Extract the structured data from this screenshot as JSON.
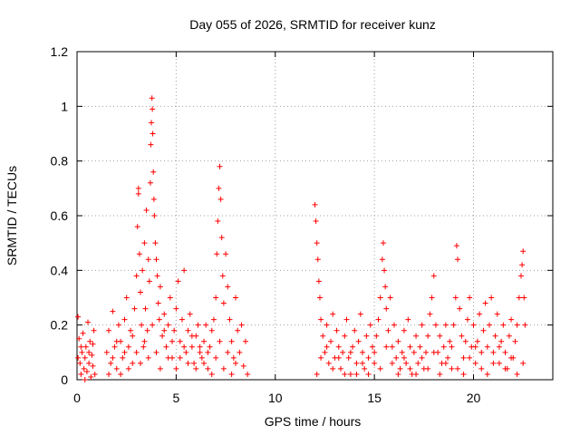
{
  "chart_data": {
    "type": "scatter",
    "title": "Day 055 of 2026, SRMTID for receiver kunz",
    "xlabel": "GPS time / hours",
    "ylabel": "SRMTID / TECUs",
    "xlim": [
      0,
      24
    ],
    "ylim": [
      0,
      1.2
    ],
    "x_ticks": [
      0,
      5,
      10,
      15,
      20
    ],
    "x_tick_labels": [
      "0",
      "5",
      "10",
      "15",
      "20"
    ],
    "y_ticks": [
      0,
      0.2,
      0.4,
      0.6,
      0.8,
      1.0,
      1.2
    ],
    "y_tick_labels": [
      "0",
      "0.2",
      "0.4",
      "0.6",
      "0.8",
      "1",
      "1.2"
    ],
    "grid": true,
    "marker": "+",
    "series": [
      {
        "name": "SRMTID",
        "color": "#ff0000",
        "points": [
          [
            0.05,
            0.23
          ],
          [
            0.1,
            0.15
          ],
          [
            0.15,
            0.06
          ],
          [
            0.2,
            0.02
          ],
          [
            0.25,
            0.1
          ],
          [
            0.3,
            0.17
          ],
          [
            0.35,
            0.04
          ],
          [
            0.4,
            0.08
          ],
          [
            0.45,
            0.12
          ],
          [
            0.5,
            0.03
          ],
          [
            0.55,
            0.21
          ],
          [
            0.6,
            0.06
          ],
          [
            0.65,
            0.14
          ],
          [
            0.7,
            0.01
          ],
          [
            0.75,
            0.09
          ],
          [
            0.8,
            0.05
          ],
          [
            0.85,
            0.18
          ],
          [
            0.9,
            0.02
          ],
          [
            0.05,
            0.08
          ],
          [
            0.2,
            0.12
          ],
          [
            0.4,
            0.0
          ],
          [
            0.6,
            0.1
          ],
          [
            0.8,
            0.13
          ],
          [
            1.5,
            0.1
          ],
          [
            1.6,
            0.18
          ],
          [
            1.7,
            0.06
          ],
          [
            1.8,
            0.25
          ],
          [
            1.9,
            0.12
          ],
          [
            2.0,
            0.04
          ],
          [
            2.1,
            0.2
          ],
          [
            2.2,
            0.14
          ],
          [
            2.3,
            0.08
          ],
          [
            2.4,
            0.22
          ],
          [
            2.5,
            0.3
          ],
          [
            2.6,
            0.12
          ],
          [
            2.7,
            0.18
          ],
          [
            2.8,
            0.06
          ],
          [
            2.9,
            0.26
          ],
          [
            3.0,
            0.38
          ],
          [
            3.05,
            0.56
          ],
          [
            3.1,
            0.7
          ],
          [
            3.1,
            0.68
          ],
          [
            3.15,
            0.46
          ],
          [
            3.2,
            0.32
          ],
          [
            3.25,
            0.2
          ],
          [
            3.3,
            0.4
          ],
          [
            3.35,
            0.12
          ],
          [
            3.4,
            0.5
          ],
          [
            3.45,
            0.26
          ],
          [
            3.5,
            0.62
          ],
          [
            3.55,
            0.18
          ],
          [
            3.6,
            0.44
          ],
          [
            3.65,
            0.36
          ],
          [
            3.7,
            0.72
          ],
          [
            3.72,
            0.86
          ],
          [
            3.75,
            0.94
          ],
          [
            3.78,
            1.03
          ],
          [
            3.8,
            0.99
          ],
          [
            3.82,
            0.9
          ],
          [
            3.85,
            0.76
          ],
          [
            3.88,
            0.66
          ],
          [
            3.9,
            0.6
          ],
          [
            3.95,
            0.5
          ],
          [
            4.0,
            0.44
          ],
          [
            4.05,
            0.38
          ],
          [
            4.1,
            0.28
          ],
          [
            4.15,
            0.22
          ],
          [
            4.2,
            0.34
          ],
          [
            4.3,
            0.16
          ],
          [
            4.4,
            0.24
          ],
          [
            4.5,
            0.12
          ],
          [
            4.6,
            0.2
          ],
          [
            4.7,
            0.3
          ],
          [
            4.8,
            0.08
          ],
          [
            4.9,
            0.18
          ],
          [
            5.0,
            0.26
          ],
          [
            5.1,
            0.36
          ],
          [
            5.2,
            0.14
          ],
          [
            5.3,
            0.22
          ],
          [
            5.4,
            0.4
          ],
          [
            5.5,
            0.1
          ],
          [
            5.6,
            0.18
          ],
          [
            5.7,
            0.24
          ],
          [
            5.8,
            0.12
          ],
          [
            5.9,
            0.06
          ],
          [
            6.0,
            0.16
          ],
          [
            6.1,
            0.2
          ],
          [
            6.2,
            0.1
          ],
          [
            6.3,
            0.08
          ],
          [
            6.4,
            0.14
          ],
          [
            6.5,
            0.2
          ],
          [
            6.6,
            0.04
          ],
          [
            6.7,
            0.12
          ],
          [
            6.8,
            0.18
          ],
          [
            6.9,
            0.22
          ],
          [
            7.0,
            0.3
          ],
          [
            7.05,
            0.46
          ],
          [
            7.1,
            0.58
          ],
          [
            7.15,
            0.7
          ],
          [
            7.2,
            0.78
          ],
          [
            7.25,
            0.66
          ],
          [
            7.3,
            0.52
          ],
          [
            7.35,
            0.38
          ],
          [
            7.4,
            0.28
          ],
          [
            7.5,
            0.46
          ],
          [
            7.6,
            0.34
          ],
          [
            7.7,
            0.22
          ],
          [
            7.8,
            0.14
          ],
          [
            7.9,
            0.08
          ],
          [
            8.0,
            0.3
          ],
          [
            8.1,
            0.18
          ],
          [
            8.2,
            0.1
          ],
          [
            8.3,
            0.2
          ],
          [
            8.4,
            0.05
          ],
          [
            8.5,
            0.14
          ],
          [
            8.6,
            0.02
          ],
          [
            1.6,
            0.02
          ],
          [
            1.8,
            0.08
          ],
          [
            2.0,
            0.14
          ],
          [
            2.2,
            0.02
          ],
          [
            2.4,
            0.1
          ],
          [
            2.6,
            0.04
          ],
          [
            2.8,
            0.16
          ],
          [
            3.0,
            0.1
          ],
          [
            3.2,
            0.06
          ],
          [
            3.4,
            0.14
          ],
          [
            3.6,
            0.08
          ],
          [
            3.8,
            0.2
          ],
          [
            4.0,
            0.1
          ],
          [
            4.2,
            0.04
          ],
          [
            4.4,
            0.18
          ],
          [
            4.6,
            0.08
          ],
          [
            4.8,
            0.14
          ],
          [
            5.0,
            0.04
          ],
          [
            5.2,
            0.08
          ],
          [
            5.4,
            0.12
          ],
          [
            5.6,
            0.06
          ],
          [
            5.8,
            0.16
          ],
          [
            6.0,
            0.04
          ],
          [
            6.2,
            0.12
          ],
          [
            6.4,
            0.06
          ],
          [
            6.6,
            0.1
          ],
          [
            6.8,
            0.02
          ],
          [
            7.0,
            0.08
          ],
          [
            7.2,
            0.14
          ],
          [
            7.4,
            0.04
          ],
          [
            7.6,
            0.1
          ],
          [
            7.8,
            0.02
          ],
          [
            8.0,
            0.06
          ],
          [
            12.0,
            0.64
          ],
          [
            12.05,
            0.58
          ],
          [
            12.1,
            0.5
          ],
          [
            12.15,
            0.44
          ],
          [
            12.2,
            0.36
          ],
          [
            12.25,
            0.3
          ],
          [
            12.3,
            0.22
          ],
          [
            12.4,
            0.16
          ],
          [
            12.5,
            0.1
          ],
          [
            12.6,
            0.2
          ],
          [
            12.7,
            0.06
          ],
          [
            12.8,
            0.14
          ],
          [
            12.9,
            0.24
          ],
          [
            13.0,
            0.08
          ],
          [
            13.1,
            0.18
          ],
          [
            13.2,
            0.12
          ],
          [
            13.3,
            0.04
          ],
          [
            13.4,
            0.1
          ],
          [
            13.5,
            0.16
          ],
          [
            13.6,
            0.22
          ],
          [
            13.7,
            0.08
          ],
          [
            13.8,
            0.02
          ],
          [
            13.9,
            0.12
          ],
          [
            14.0,
            0.18
          ],
          [
            14.1,
            0.06
          ],
          [
            14.2,
            0.14
          ],
          [
            14.3,
            0.24
          ],
          [
            14.4,
            0.1
          ],
          [
            14.5,
            0.04
          ],
          [
            14.6,
            0.16
          ],
          [
            14.7,
            0.08
          ],
          [
            14.8,
            0.2
          ],
          [
            14.9,
            0.12
          ],
          [
            15.0,
            0.06
          ],
          [
            15.1,
            0.16
          ],
          [
            15.2,
            0.22
          ],
          [
            15.3,
            0.3
          ],
          [
            15.4,
            0.44
          ],
          [
            15.45,
            0.5
          ],
          [
            15.5,
            0.4
          ],
          [
            15.55,
            0.34
          ],
          [
            15.6,
            0.26
          ],
          [
            15.7,
            0.18
          ],
          [
            15.8,
            0.3
          ],
          [
            15.9,
            0.12
          ],
          [
            16.0,
            0.2
          ],
          [
            16.1,
            0.08
          ],
          [
            16.2,
            0.14
          ],
          [
            16.3,
            0.04
          ],
          [
            16.4,
            0.1
          ],
          [
            16.5,
            0.18
          ],
          [
            16.6,
            0.06
          ],
          [
            16.7,
            0.22
          ],
          [
            16.8,
            0.12
          ],
          [
            16.9,
            0.02
          ],
          [
            17.0,
            0.1
          ],
          [
            17.1,
            0.16
          ],
          [
            17.2,
            0.06
          ],
          [
            17.3,
            0.12
          ],
          [
            17.4,
            0.2
          ],
          [
            17.5,
            0.04
          ],
          [
            17.6,
            0.1
          ],
          [
            17.7,
            0.16
          ],
          [
            17.8,
            0.24
          ],
          [
            17.9,
            0.3
          ],
          [
            18.0,
            0.38
          ],
          [
            18.1,
            0.2
          ],
          [
            18.2,
            0.1
          ],
          [
            18.3,
            0.16
          ],
          [
            18.4,
            0.06
          ],
          [
            18.5,
            0.12
          ],
          [
            18.6,
            0.2
          ],
          [
            18.7,
            0.08
          ],
          [
            18.8,
            0.14
          ],
          [
            18.9,
            0.04
          ],
          [
            19.0,
            0.2
          ],
          [
            19.1,
            0.3
          ],
          [
            19.15,
            0.49
          ],
          [
            19.2,
            0.44
          ],
          [
            19.3,
            0.26
          ],
          [
            19.4,
            0.16
          ],
          [
            19.5,
            0.08
          ],
          [
            19.6,
            0.14
          ],
          [
            19.7,
            0.22
          ],
          [
            19.8,
            0.3
          ],
          [
            19.9,
            0.12
          ],
          [
            20.0,
            0.2
          ],
          [
            20.1,
            0.06
          ],
          [
            20.2,
            0.14
          ],
          [
            20.3,
            0.24
          ],
          [
            20.4,
            0.1
          ],
          [
            20.5,
            0.18
          ],
          [
            20.6,
            0.28
          ],
          [
            20.7,
            0.12
          ],
          [
            20.8,
            0.2
          ],
          [
            20.9,
            0.3
          ],
          [
            21.0,
            0.1
          ],
          [
            21.1,
            0.16
          ],
          [
            21.2,
            0.24
          ],
          [
            21.3,
            0.06
          ],
          [
            21.4,
            0.14
          ],
          [
            21.5,
            0.2
          ],
          [
            21.6,
            0.1
          ],
          [
            21.7,
            0.04
          ],
          [
            21.8,
            0.16
          ],
          [
            21.9,
            0.22
          ],
          [
            22.0,
            0.08
          ],
          [
            22.1,
            0.14
          ],
          [
            22.2,
            0.2
          ],
          [
            22.3,
            0.3
          ],
          [
            22.4,
            0.38
          ],
          [
            22.45,
            0.42
          ],
          [
            22.5,
            0.47
          ],
          [
            22.55,
            0.3
          ],
          [
            22.6,
            0.2
          ],
          [
            12.1,
            0.02
          ],
          [
            12.3,
            0.08
          ],
          [
            12.6,
            0.12
          ],
          [
            12.9,
            0.04
          ],
          [
            13.2,
            0.08
          ],
          [
            13.5,
            0.02
          ],
          [
            13.8,
            0.1
          ],
          [
            14.1,
            0.02
          ],
          [
            14.4,
            0.06
          ],
          [
            14.7,
            0.02
          ],
          [
            15.0,
            0.1
          ],
          [
            15.3,
            0.04
          ],
          [
            15.6,
            0.12
          ],
          [
            15.9,
            0.06
          ],
          [
            16.2,
            0.02
          ],
          [
            16.5,
            0.08
          ],
          [
            16.8,
            0.04
          ],
          [
            17.1,
            0.02
          ],
          [
            17.4,
            0.08
          ],
          [
            17.7,
            0.04
          ],
          [
            18.0,
            0.1
          ],
          [
            18.3,
            0.02
          ],
          [
            18.6,
            0.06
          ],
          [
            18.9,
            0.12
          ],
          [
            19.2,
            0.04
          ],
          [
            19.5,
            0.02
          ],
          [
            19.8,
            0.08
          ],
          [
            20.1,
            0.12
          ],
          [
            20.4,
            0.04
          ],
          [
            20.7,
            0.02
          ],
          [
            21.0,
            0.06
          ],
          [
            21.3,
            0.12
          ],
          [
            21.6,
            0.04
          ],
          [
            21.9,
            0.08
          ],
          [
            22.2,
            0.02
          ],
          [
            22.5,
            0.06
          ]
        ]
      }
    ]
  }
}
